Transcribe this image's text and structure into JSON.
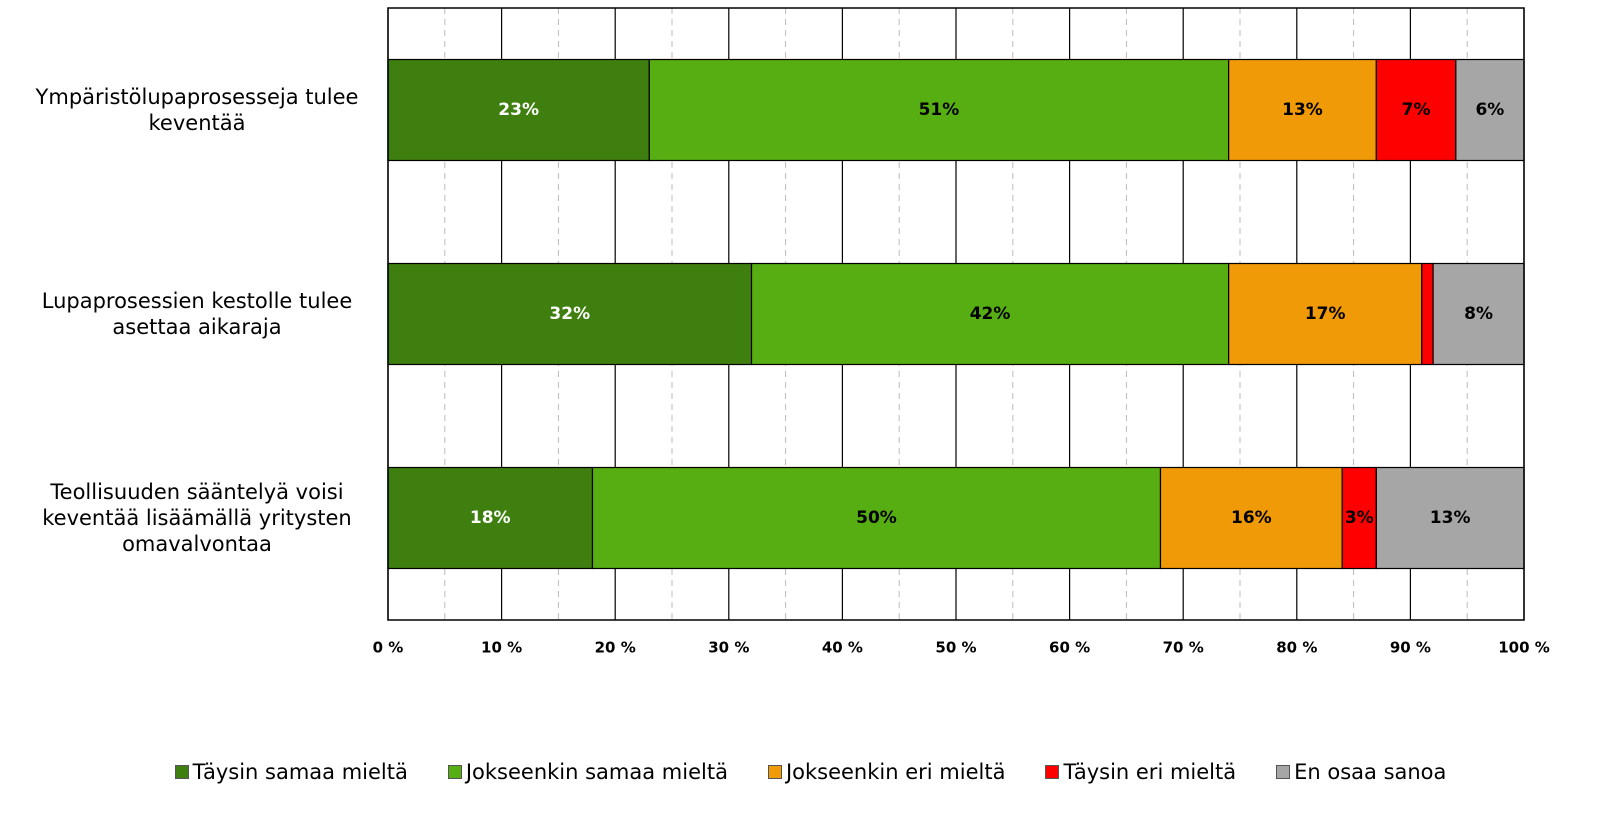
{
  "chart_data": {
    "type": "stacked_barh",
    "categories": [
      "Ympäristölupaprosesseja tulee keventää",
      "Lupaprosessien kestolle tulee asettaa aikaraja",
      "Teollisuuden sääntelyä voisi keventää lisäämällä yritysten omavalvontaa"
    ],
    "series": [
      {
        "name": "Täysin samaa mieltä",
        "color": "#3f7f0f",
        "label_color": "#ffffff",
        "values": [
          23,
          32,
          18
        ],
        "value_labels": [
          "23%",
          "32%",
          "18%"
        ]
      },
      {
        "name": "Jokseenkin samaa mieltä",
        "color": "#56ae12",
        "label_color": "#000000",
        "values": [
          51,
          42,
          50
        ],
        "value_labels": [
          "51%",
          "42%",
          "50%"
        ]
      },
      {
        "name": "Jokseenkin eri mieltä",
        "color": "#f09a07",
        "label_color": "#000000",
        "values": [
          13,
          17,
          16
        ],
        "value_labels": [
          "13%",
          "17%",
          "16%"
        ]
      },
      {
        "name": "Täysin eri mieltä",
        "color": "#ff0000",
        "label_color": "#000000",
        "values": [
          7,
          1,
          3
        ],
        "value_labels": [
          "7%",
          null,
          "3%"
        ]
      },
      {
        "name": "En osaa sanoa",
        "color": "#a6a6a6",
        "label_color": "#000000",
        "values": [
          6,
          8,
          13
        ],
        "value_labels": [
          "6%",
          "8%",
          "13%"
        ]
      }
    ],
    "xlim": [
      0,
      100
    ],
    "xticks": [
      {
        "value": 0,
        "label": "0 %"
      },
      {
        "value": 10,
        "label": "10 %"
      },
      {
        "value": 20,
        "label": "20 %"
      },
      {
        "value": 30,
        "label": "30 %"
      },
      {
        "value": 40,
        "label": "40 %"
      },
      {
        "value": 50,
        "label": "50 %"
      },
      {
        "value": 60,
        "label": "60 %"
      },
      {
        "value": 70,
        "label": "70 %"
      },
      {
        "value": 80,
        "label": "80 %"
      },
      {
        "value": 90,
        "label": "90 %"
      },
      {
        "value": 100,
        "label": "100 %"
      }
    ],
    "minor_grid": [
      5,
      15,
      25,
      35,
      45,
      55,
      65,
      75,
      85,
      95
    ],
    "grid": true,
    "legend": "bottom"
  }
}
